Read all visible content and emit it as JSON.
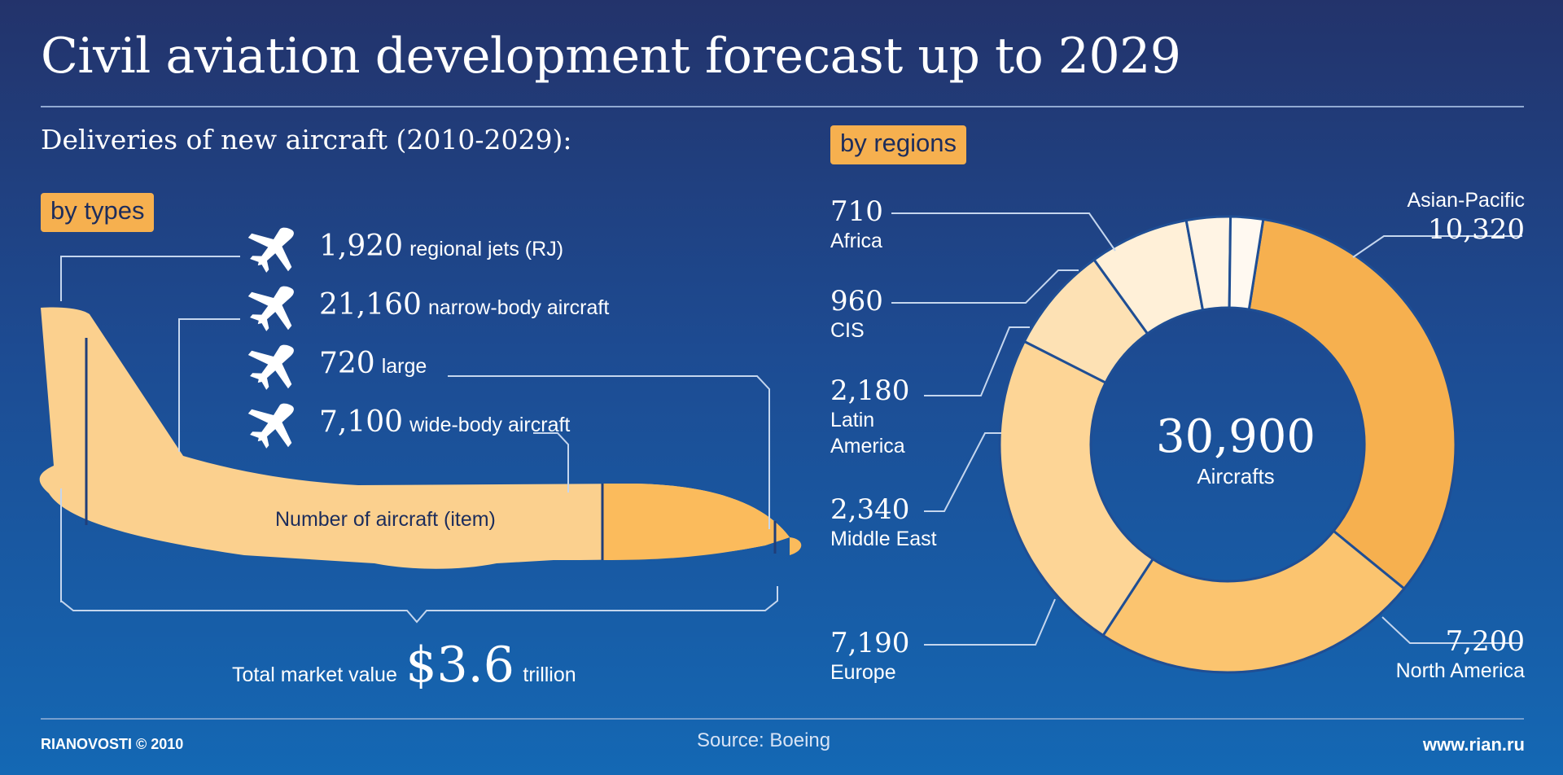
{
  "title": "Civil aviation development forecast up to 2029",
  "subtitle": "Deliveries of new aircraft (2010-2029):",
  "by_types_badge": "by types",
  "by_regions_badge": "by regions",
  "plane_label": "Number of aircraft (item)",
  "total": {
    "prefix": "Total market value",
    "value": "$3.6",
    "suffix": "trillion"
  },
  "center": {
    "value": "30,900",
    "label": "Aircrafts"
  },
  "footer": {
    "brand": "RIANOVOSTI © 2010",
    "source": "Source: Boeing",
    "site": "www.rian.ru"
  },
  "icons": [
    "airplane-icon"
  ],
  "colors": {
    "accent": "#f6b04f",
    "plane": "#fbd08e",
    "background": "#1d4b92"
  },
  "chart_data": [
    {
      "type": "table",
      "title": "by types",
      "categories": [
        "regional jets (RJ)",
        "narrow-body aircraft",
        "large",
        "wide-body aircraft"
      ],
      "values": [
        1920,
        21160,
        720,
        7100
      ],
      "labels": [
        "1,920",
        "21,160",
        "720",
        "7,100"
      ]
    },
    {
      "type": "pie",
      "title": "by regions",
      "categories": [
        "Asian-Pacific",
        "North America",
        "Europe",
        "Middle East",
        "Latin America",
        "CIS",
        "Africa"
      ],
      "values": [
        10320,
        7200,
        7190,
        2340,
        2180,
        960,
        710
      ],
      "labels": [
        "10,320",
        "7,200",
        "7,190",
        "2,340",
        "2,180",
        "960",
        "710"
      ],
      "name_lines": [
        [
          "Asian-Pacific"
        ],
        [
          "North America"
        ],
        [
          "Europe"
        ],
        [
          "Middle East"
        ],
        [
          "Latin",
          "America"
        ],
        [
          "CIS"
        ],
        [
          "Africa"
        ]
      ],
      "colors": [
        "#f6b04f",
        "#fbc46f",
        "#fdd596",
        "#fde1b4",
        "#fff0d8",
        "#fff4e4",
        "#fff9f1"
      ]
    }
  ]
}
